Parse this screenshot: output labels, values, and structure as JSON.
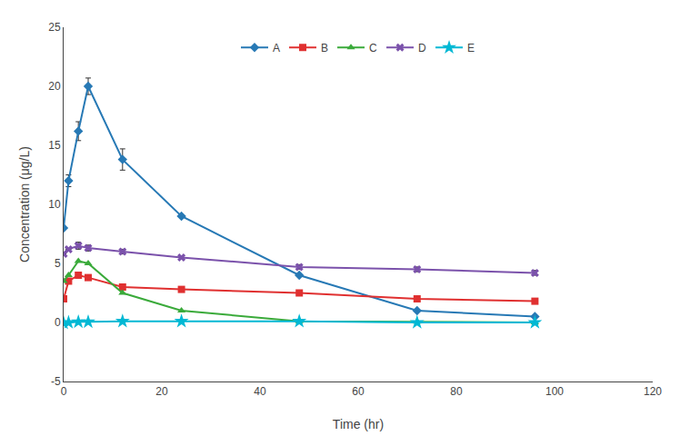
{
  "chart_data": {
    "type": "line",
    "x_label": "Time (hr)",
    "y_label": "Concentration (μg/L)",
    "x": [
      0,
      1,
      3,
      5,
      12,
      24,
      48,
      72,
      96
    ],
    "series": [
      {
        "name": "A",
        "color": "#2779b5",
        "marker": "diamond",
        "values": [
          8.0,
          12.0,
          16.2,
          20.0,
          13.8,
          9.0,
          4.0,
          1.0,
          0.5
        ],
        "yerr": [
          0,
          0.5,
          0.8,
          0.7,
          0.9,
          0,
          0,
          0,
          0
        ]
      },
      {
        "name": "B",
        "color": "#e03030",
        "marker": "square",
        "values": [
          2.0,
          3.5,
          4.0,
          3.8,
          3.0,
          2.8,
          2.5,
          2.0,
          1.8
        ],
        "yerr": [
          0,
          0,
          0,
          0,
          0,
          0,
          0,
          0,
          0
        ]
      },
      {
        "name": "C",
        "color": "#3aaa3a",
        "marker": "triangle-up",
        "values": [
          3.5,
          4.0,
          5.2,
          5.0,
          2.5,
          1.0,
          0.1,
          0.05,
          0.0
        ],
        "yerr": [
          0,
          0,
          0,
          0,
          0,
          0,
          0,
          0,
          0
        ]
      },
      {
        "name": "D",
        "color": "#7b52ab",
        "marker": "x",
        "values": [
          5.8,
          6.2,
          6.5,
          6.3,
          6.0,
          5.5,
          4.7,
          4.5,
          4.2
        ],
        "yerr": [
          0,
          0,
          0.3,
          0.25,
          0.2,
          0,
          0.2,
          0.2,
          0.2
        ]
      },
      {
        "name": "E",
        "color": "#00b8d4",
        "marker": "star",
        "values": [
          -0.05,
          0.0,
          0.05,
          0.05,
          0.1,
          0.1,
          0.1,
          0.0,
          0.0
        ],
        "yerr": [
          0,
          0,
          0,
          0,
          0,
          0,
          0,
          0,
          0
        ]
      }
    ],
    "xlim": [
      0,
      120
    ],
    "ylim": [
      -5,
      25
    ],
    "xticks": [
      0,
      20,
      40,
      60,
      80,
      100,
      120
    ],
    "yticks": [
      -5,
      0,
      5,
      10,
      15,
      20,
      25
    ],
    "grid": false,
    "legend": "upper center"
  }
}
